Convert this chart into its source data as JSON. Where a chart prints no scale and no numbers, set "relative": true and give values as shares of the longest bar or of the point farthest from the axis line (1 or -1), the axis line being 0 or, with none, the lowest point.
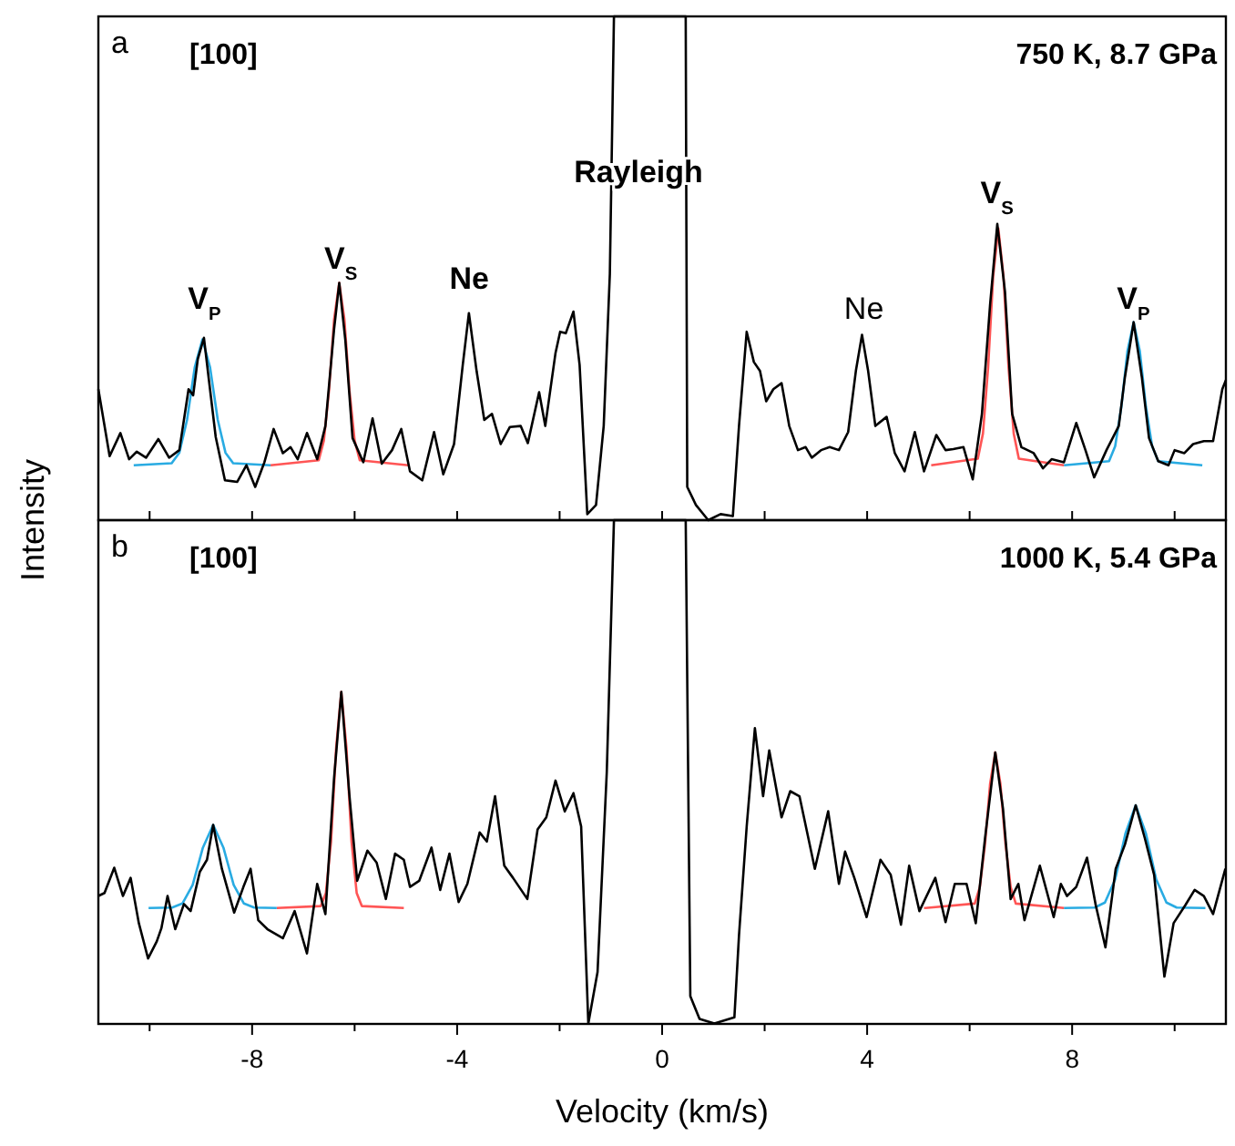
{
  "chart_data": [
    {
      "type": "line",
      "relative": true,
      "ylabel": "Intensity",
      "xlim": [
        -11,
        11
      ],
      "tick_labels": false,
      "xticks": [
        {
          "value": -10,
          "label": null
        },
        {
          "value": -8,
          "label": null
        },
        {
          "value": -6,
          "label": null
        },
        {
          "value": -4,
          "label": null
        },
        {
          "value": -2,
          "label": null
        },
        {
          "value": 0,
          "label": null
        },
        {
          "value": 2,
          "label": null
        },
        {
          "value": 4,
          "label": null
        },
        {
          "value": 6,
          "label": null
        },
        {
          "value": 8,
          "label": null
        },
        {
          "value": 10,
          "label": null
        }
      ],
      "annotations": [
        "a",
        "[100]",
        "750 K, 8.7 GPa",
        "V$_{P}$",
        "V$_{S}$",
        "Ne",
        "Rayleigh",
        "Ne",
        "V$_{S}$",
        "V$_{P}$"
      ],
      "series": [
        {
          "color": "#000000",
          "x": [
            -11,
            -10.78,
            -10.57,
            -10.4,
            -10.25,
            -10.07,
            -9.83,
            -9.62,
            -9.42,
            -9.24,
            -9.15,
            -9.06,
            -8.94,
            -8.85,
            -8.71,
            -8.53,
            -8.29,
            -8.11,
            -7.94,
            -7.76,
            -7.58,
            -7.4,
            -7.25,
            -7.11,
            -6.93,
            -6.73,
            -6.57,
            -6.4,
            -6.3,
            -6.18,
            -6.04,
            -5.83,
            -5.65,
            -5.47,
            -5.27,
            -5.09,
            -4.92,
            -4.68,
            -4.45,
            -4.27,
            -4.06,
            -3.89,
            -3.77,
            -3.62,
            -3.47,
            -3.32,
            -3.15,
            -2.97,
            -2.76,
            -2.62,
            -2.4,
            -2.28,
            -2.08,
            -1.99,
            -1.88,
            -1.73,
            -1.61,
            -1.46,
            -1.29,
            -1.14,
            -1.02,
            -0.94,
            0.46,
            0.49,
            0.66,
            0.9,
            1.14,
            1.38,
            1.5,
            1.65,
            1.79,
            1.91,
            2.03,
            2.17,
            2.33,
            2.48,
            2.65,
            2.8,
            2.92,
            3.1,
            3.27,
            3.45,
            3.63,
            3.78,
            3.9,
            4.02,
            4.16,
            4.38,
            4.54,
            4.73,
            4.93,
            5.11,
            5.35,
            5.53,
            5.68,
            5.88,
            6.06,
            6.24,
            6.4,
            6.54,
            6.69,
            6.83,
            7.01,
            7.25,
            7.43,
            7.6,
            7.84,
            8.08,
            8.26,
            8.43,
            8.67,
            8.91,
            9.03,
            9.2,
            9.36,
            9.5,
            9.68,
            9.88,
            10,
            10.19,
            10.36,
            10.57,
            10.75,
            10.93,
            11
          ],
          "values": [
            0.26,
            0.127,
            0.173,
            0.121,
            0.136,
            0.124,
            0.161,
            0.124,
            0.139,
            0.26,
            0.248,
            0.32,
            0.362,
            0.284,
            0.165,
            0.079,
            0.076,
            0.109,
            0.066,
            0.115,
            0.181,
            0.133,
            0.145,
            0.121,
            0.173,
            0.121,
            0.187,
            0.38,
            0.471,
            0.356,
            0.163,
            0.115,
            0.202,
            0.112,
            0.139,
            0.181,
            0.097,
            0.079,
            0.175,
            0.091,
            0.151,
            0.308,
            0.411,
            0.296,
            0.199,
            0.211,
            0.151,
            0.185,
            0.187,
            0.153,
            0.254,
            0.187,
            0.332,
            0.374,
            0.371,
            0.414,
            0.308,
            0.012,
            0.03,
            0.187,
            0.489,
            1,
            1,
            0.066,
            0.03,
            0,
            0.012,
            0.008,
            0.187,
            0.374,
            0.314,
            0.296,
            0.236,
            0.26,
            0.272,
            0.187,
            0.139,
            0.145,
            0.124,
            0.139,
            0.145,
            0.139,
            0.175,
            0.296,
            0.368,
            0.296,
            0.187,
            0.205,
            0.133,
            0.097,
            0.175,
            0.097,
            0.169,
            0.139,
            0.141,
            0.145,
            0.081,
            0.211,
            0.429,
            0.588,
            0.453,
            0.211,
            0.145,
            0.133,
            0.103,
            0.121,
            0.115,
            0.193,
            0.139,
            0.085,
            0.139,
            0.187,
            0.284,
            0.393,
            0.284,
            0.163,
            0.117,
            0.109,
            0.139,
            0.133,
            0.151,
            0.157,
            0.157,
            0.26,
            0.278
          ]
        },
        {
          "color": "#29abe2",
          "x": [
            -10.31,
            -9.57,
            -9.42,
            -9.27,
            -9.12,
            -8.97,
            -8.82,
            -8.67,
            -8.52,
            -8.37,
            -7.64
          ],
          "values": [
            0.109,
            0.113,
            0.134,
            0.199,
            0.303,
            0.359,
            0.303,
            0.199,
            0.134,
            0.113,
            0.109
          ]
        },
        {
          "color": "#ff5555",
          "x": [
            -7.64,
            -6.7,
            -6.6,
            -6.5,
            -6.4,
            -6.3,
            -6.2,
            -6.1,
            -6,
            -5.9,
            -4.95
          ],
          "values": [
            0.109,
            0.119,
            0.158,
            0.257,
            0.399,
            0.471,
            0.399,
            0.257,
            0.158,
            0.119,
            0.109
          ]
        },
        {
          "color": "#ff5555",
          "x": [
            5.25,
            6.16,
            6.26,
            6.36,
            6.46,
            6.56,
            6.66,
            6.76,
            6.86,
            6.96,
            7.84
          ],
          "values": [
            0.109,
            0.122,
            0.172,
            0.302,
            0.485,
            0.579,
            0.485,
            0.302,
            0.172,
            0.122,
            0.109
          ]
        },
        {
          "color": "#29abe2",
          "x": [
            7.84,
            8.72,
            8.84,
            8.96,
            9.08,
            9.2,
            9.32,
            9.44,
            9.56,
            9.68,
            10.54
          ],
          "values": [
            0.109,
            0.117,
            0.147,
            0.225,
            0.336,
            0.393,
            0.336,
            0.225,
            0.147,
            0.117,
            0.109
          ]
        }
      ]
    },
    {
      "type": "line",
      "relative": true,
      "xlabel": "Velocity (km/s)",
      "xlim": [
        -11,
        11
      ],
      "xticks": [
        {
          "value": -10,
          "label": null
        },
        -8,
        {
          "value": -6,
          "label": null
        },
        -4,
        {
          "value": -2,
          "label": null
        },
        0,
        {
          "value": 2,
          "label": null
        },
        4,
        {
          "value": 6,
          "label": null
        },
        8,
        {
          "value": 10,
          "label": null
        }
      ],
      "annotations": [
        "b",
        "[100]",
        "1000 K, 5.4 GPa"
      ],
      "series": [
        {
          "color": "#000000",
          "x": [
            -11,
            -10.88,
            -10.69,
            -10.52,
            -10.37,
            -10.21,
            -10.03,
            -9.86,
            -9.77,
            -9.65,
            -9.5,
            -9.33,
            -9.2,
            -9.02,
            -8.88,
            -8.76,
            -8.59,
            -8.35,
            -8.17,
            -8.03,
            -7.88,
            -7.7,
            -7.4,
            -7.17,
            -6.93,
            -6.73,
            -6.57,
            -6.4,
            -6.26,
            -6.1,
            -5.95,
            -5.75,
            -5.57,
            -5.39,
            -5.21,
            -5.04,
            -4.92,
            -4.74,
            -4.5,
            -4.33,
            -4.15,
            -3.97,
            -3.8,
            -3.56,
            -3.42,
            -3.26,
            -3.08,
            -2.91,
            -2.63,
            -2.43,
            -2.26,
            -2.08,
            -1.9,
            -1.73,
            -1.58,
            -1.44,
            -1.26,
            -1.08,
            -0.94,
            0.46,
            0.55,
            0.73,
            1.02,
            1.41,
            1.5,
            1.65,
            1.81,
            1.97,
            2.09,
            2.33,
            2.5,
            2.68,
            2.98,
            3.24,
            3.45,
            3.57,
            3.75,
            3.99,
            4.26,
            4.46,
            4.66,
            4.82,
            5.02,
            5.33,
            5.53,
            5.71,
            5.94,
            6.12,
            6.3,
            6.5,
            6.65,
            6.8,
            6.95,
            7.07,
            7.37,
            7.64,
            7.78,
            7.9,
            8.08,
            8.29,
            8.46,
            8.65,
            8.85,
            9.03,
            9.24,
            9.42,
            9.6,
            9.8,
            9.98,
            10.21,
            10.39,
            10.57,
            10.75,
            10.99
          ],
          "values": [
            0.254,
            0.26,
            0.31,
            0.254,
            0.29,
            0.2,
            0.13,
            0.164,
            0.19,
            0.254,
            0.188,
            0.238,
            0.224,
            0.302,
            0.326,
            0.395,
            0.308,
            0.221,
            0.272,
            0.308,
            0.206,
            0.188,
            0.17,
            0.224,
            0.14,
            0.278,
            0.218,
            0.489,
            0.659,
            0.452,
            0.284,
            0.344,
            0.32,
            0.248,
            0.338,
            0.326,
            0.272,
            0.284,
            0.35,
            0.266,
            0.338,
            0.242,
            0.278,
            0.38,
            0.362,
            0.452,
            0.314,
            0.29,
            0.248,
            0.386,
            0.41,
            0.483,
            0.422,
            0.458,
            0.392,
            0.001,
            0.103,
            0.5,
            1,
            1,
            0.055,
            0.01,
            0.001,
            0.013,
            0.176,
            0.392,
            0.587,
            0.452,
            0.543,
            0.41,
            0.462,
            0.452,
            0.308,
            0.422,
            0.278,
            0.342,
            0.29,
            0.212,
            0.326,
            0.296,
            0.197,
            0.314,
            0.224,
            0.29,
            0.202,
            0.278,
            0.278,
            0.2,
            0.368,
            0.539,
            0.428,
            0.248,
            0.278,
            0.206,
            0.314,
            0.212,
            0.278,
            0.254,
            0.272,
            0.33,
            0.236,
            0.152,
            0.308,
            0.356,
            0.434,
            0.368,
            0.296,
            0.094,
            0.2,
            0.236,
            0.266,
            0.254,
            0.218,
            0.308
          ]
        },
        {
          "color": "#29abe2",
          "x": [
            -10.02,
            -9.56,
            -9.36,
            -9.16,
            -8.96,
            -8.76,
            -8.56,
            -8.36,
            -8.16,
            -7.96,
            -7.52
          ],
          "values": [
            0.23,
            0.231,
            0.239,
            0.276,
            0.35,
            0.395,
            0.35,
            0.276,
            0.239,
            0.231,
            0.23
          ]
        },
        {
          "color": "#ff5555",
          "x": [
            -7.52,
            -6.66,
            -6.56,
            -6.46,
            -6.36,
            -6.26,
            -6.16,
            -6.06,
            -5.96,
            -5.86,
            -5.04
          ],
          "values": [
            0.23,
            0.234,
            0.26,
            0.362,
            0.549,
            0.659,
            0.549,
            0.362,
            0.26,
            0.234,
            0.23
          ]
        },
        {
          "color": "#ff5555",
          "x": [
            5.11,
            6.1,
            6.2,
            6.3,
            6.4,
            6.5,
            6.6,
            6.7,
            6.8,
            6.9,
            7.84
          ],
          "values": [
            0.23,
            0.239,
            0.272,
            0.357,
            0.477,
            0.539,
            0.477,
            0.357,
            0.272,
            0.239,
            0.23
          ]
        },
        {
          "color": "#29abe2",
          "x": [
            7.84,
            8.44,
            8.64,
            8.84,
            9.04,
            9.24,
            9.44,
            9.64,
            9.84,
            10.04,
            10.6
          ],
          "values": [
            0.23,
            0.231,
            0.241,
            0.287,
            0.378,
            0.434,
            0.378,
            0.287,
            0.241,
            0.231,
            0.23
          ]
        }
      ]
    }
  ]
}
